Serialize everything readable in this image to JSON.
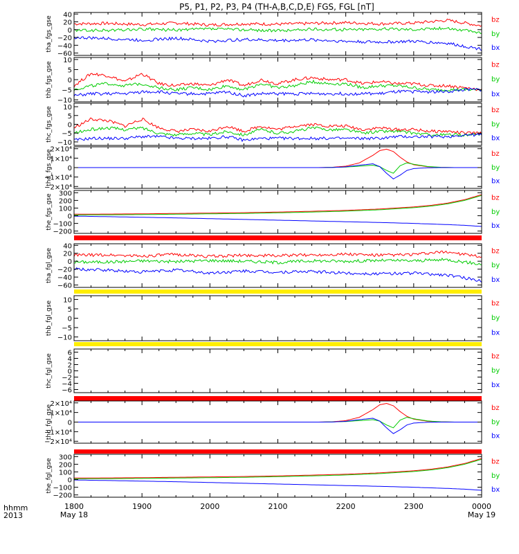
{
  "title": "P5, P1, P2, P3, P4 (TH-A,B,C,D,E) FGS, FGL [nT]",
  "time_axis": {
    "label": "hhmm",
    "year": "2013",
    "tick_labels": [
      "1800",
      "1900",
      "2000",
      "2100",
      "2200",
      "2300",
      "0000"
    ],
    "date_labels": [
      "May 18",
      "May 19"
    ]
  },
  "legend": {
    "labels": [
      "bz",
      "by",
      "bx"
    ],
    "colors": {
      "bz": "#ff0000",
      "by": "#00cc00",
      "bx": "#0000ff"
    }
  },
  "chart_data": [
    {
      "type": "line",
      "ylabel": "tha_fgs_gse",
      "ylim": [
        -66,
        44
      ],
      "yticks": [
        40,
        20,
        0,
        -20,
        -40,
        -60
      ],
      "ytick_labels": [
        "40",
        "20",
        "0",
        "−20",
        "−40",
        "−60"
      ],
      "x": [
        18.0,
        18.5,
        19.0,
        19.5,
        20.0,
        20.5,
        21.0,
        21.5,
        22.0,
        22.5,
        23.0,
        23.5,
        24.0
      ],
      "series": [
        {
          "name": "bz",
          "values": [
            15,
            16,
            13,
            17,
            12,
            15,
            14,
            16,
            18,
            15,
            17,
            24,
            10
          ]
        },
        {
          "name": "by",
          "values": [
            -2,
            -2,
            1,
            -1,
            2,
            0,
            -3,
            1,
            0,
            2,
            1,
            4,
            -8
          ]
        },
        {
          "name": "bx",
          "values": [
            -20,
            -23,
            -27,
            -22,
            -30,
            -25,
            -28,
            -26,
            -30,
            -32,
            -30,
            -35,
            -50
          ]
        }
      ]
    },
    {
      "type": "line",
      "ylabel": "thb_fgs_gse",
      "ylim": [
        -11,
        11
      ],
      "yticks": [
        10,
        5,
        0,
        -5,
        -10
      ],
      "ytick_labels": [
        "10",
        "5",
        "0",
        "−5",
        "−10"
      ],
      "x": [
        18.0,
        18.25,
        18.5,
        18.75,
        19.0,
        19.25,
        19.5,
        19.75,
        20.0,
        20.25,
        20.5,
        20.75,
        21.0,
        21.25,
        21.5,
        21.75,
        22.0,
        22.25,
        22.5,
        22.75,
        23.0,
        23.25,
        23.5,
        23.75,
        24.0
      ],
      "series": [
        {
          "name": "bz",
          "values": [
            -3,
            3,
            2,
            -1,
            3,
            -2,
            -3,
            -2,
            -3,
            0,
            -3,
            0,
            -2,
            0,
            1,
            0,
            0,
            -2,
            -1,
            -2,
            -2,
            -3,
            -3,
            -4,
            -5
          ]
        },
        {
          "name": "by",
          "values": [
            -5,
            -3,
            -2,
            -3,
            -2,
            -4,
            -5,
            -4,
            -5,
            -3,
            -5,
            -2,
            -4,
            -3,
            -1,
            -2,
            -2,
            -4,
            -3,
            -3,
            -4,
            -5,
            -5,
            -5,
            -5
          ]
        },
        {
          "name": "bx",
          "values": [
            -8,
            -7,
            -7,
            -7,
            -6,
            -6,
            -7,
            -7,
            -7,
            -6,
            -8,
            -7,
            -7,
            -7,
            -7,
            -7,
            -7,
            -7,
            -7,
            -6,
            -6,
            -6,
            -6,
            -5,
            -5
          ]
        }
      ]
    },
    {
      "type": "line",
      "ylabel": "thc_fgs_gse",
      "ylim": [
        -12,
        12
      ],
      "yticks": [
        10,
        5,
        0,
        -5,
        -10
      ],
      "ytick_labels": [
        "10",
        "5",
        "0",
        "−5",
        "−10"
      ],
      "x": [
        18.0,
        18.25,
        18.5,
        18.75,
        19.0,
        19.25,
        19.5,
        19.75,
        20.0,
        20.25,
        20.5,
        20.75,
        21.0,
        21.25,
        21.5,
        21.75,
        22.0,
        22.25,
        22.5,
        22.75,
        23.0,
        23.25,
        23.5,
        23.75,
        24.0
      ],
      "series": [
        {
          "name": "bz",
          "values": [
            -2,
            3,
            2,
            -1,
            3,
            -2,
            -4,
            -3,
            -4,
            -1,
            -4,
            -1,
            -3,
            -1,
            0,
            -1,
            -1,
            -3,
            -2,
            -3,
            -3,
            -4,
            -4,
            -5,
            -5
          ]
        },
        {
          "name": "by",
          "values": [
            -5,
            -3,
            -2,
            -3,
            -2,
            -5,
            -6,
            -5,
            -6,
            -4,
            -6,
            -3,
            -5,
            -4,
            -2,
            -3,
            -3,
            -5,
            -4,
            -4,
            -5,
            -6,
            -6,
            -6,
            -6
          ]
        },
        {
          "name": "bx",
          "values": [
            -9,
            -8,
            -8,
            -8,
            -7,
            -7,
            -8,
            -8,
            -8,
            -7,
            -9,
            -8,
            -8,
            -8,
            -8,
            -8,
            -8,
            -8,
            -8,
            -7,
            -7,
            -7,
            -7,
            -6,
            -6
          ]
        }
      ]
    },
    {
      "type": "line",
      "ylabel": "thd_fgs_gse",
      "ylim": [
        -22000,
        22000
      ],
      "yticks": [
        20000,
        10000,
        0,
        -10000,
        -20000
      ],
      "ytick_labels": [
        "2×10⁴",
        "1×10⁴",
        "0",
        "−1×10⁴",
        "−2×10⁴"
      ],
      "x": [
        18.0,
        21.4,
        21.6,
        21.8,
        22.0,
        22.2,
        22.4,
        22.5,
        22.6,
        22.7,
        22.8,
        22.9,
        23.0,
        23.2,
        23.4,
        23.6,
        24.0
      ],
      "series": [
        {
          "name": "bz",
          "values": [
            0,
            0,
            0,
            300,
            1500,
            5000,
            13000,
            18000,
            19500,
            17000,
            11000,
            6000,
            3000,
            900,
            200,
            0,
            0
          ]
        },
        {
          "name": "by",
          "values": [
            0,
            0,
            0,
            200,
            600,
            1500,
            2500,
            1000,
            -3000,
            -6000,
            2000,
            5000,
            3500,
            1200,
            300,
            0,
            0
          ]
        },
        {
          "name": "bx",
          "values": [
            0,
            0,
            0,
            100,
            800,
            2500,
            4000,
            1000,
            -6000,
            -12000,
            -8000,
            -3000,
            -1000,
            -200,
            0,
            0,
            0
          ]
        }
      ]
    },
    {
      "type": "line",
      "ylabel": "the_fgs_gse",
      "ylim": [
        -230,
        330
      ],
      "yticks": [
        300,
        200,
        100,
        0,
        -100,
        -200
      ],
      "ytick_labels": [
        "300",
        "200",
        "100",
        "0",
        "−100",
        "−200"
      ],
      "x": [
        18.0,
        18.5,
        19.0,
        19.5,
        20.0,
        20.5,
        21.0,
        21.5,
        22.0,
        22.5,
        23.0,
        23.25,
        23.5,
        23.75,
        24.0
      ],
      "series": [
        {
          "name": "bz",
          "values": [
            20,
            22,
            25,
            30,
            35,
            40,
            48,
            58,
            70,
            88,
            115,
            135,
            165,
            210,
            275
          ]
        },
        {
          "name": "by",
          "values": [
            10,
            12,
            15,
            20,
            25,
            30,
            38,
            48,
            60,
            78,
            105,
            125,
            155,
            200,
            265
          ]
        },
        {
          "name": "bx",
          "values": [
            -5,
            -12,
            -20,
            -28,
            -38,
            -48,
            -58,
            -68,
            -78,
            -88,
            -100,
            -108,
            -115,
            -125,
            -140
          ]
        }
      ]
    },
    {
      "type": "line",
      "ylabel": "tha_fgl_gse",
      "ylim": [
        -66,
        44
      ],
      "yticks": [
        40,
        20,
        0,
        -20,
        -40,
        -60
      ],
      "ytick_labels": [
        "40",
        "20",
        "0",
        "−20",
        "−40",
        "−60"
      ],
      "x": [
        18.0,
        18.5,
        19.0,
        19.5,
        20.0,
        20.5,
        21.0,
        21.5,
        22.0,
        22.5,
        23.0,
        23.5,
        24.0
      ],
      "series": [
        {
          "name": "bz",
          "values": [
            15,
            16,
            13,
            17,
            12,
            15,
            14,
            16,
            18,
            15,
            17,
            24,
            10
          ]
        },
        {
          "name": "by",
          "values": [
            -2,
            -2,
            1,
            -1,
            2,
            0,
            -3,
            1,
            0,
            2,
            1,
            4,
            -8
          ]
        },
        {
          "name": "bx",
          "values": [
            -20,
            -23,
            -27,
            -22,
            -30,
            -25,
            -28,
            -26,
            -30,
            -32,
            -30,
            -35,
            -50
          ]
        }
      ]
    },
    {
      "type": "line",
      "ylabel": "thb_fgl_gse",
      "ylim": [
        -12,
        12
      ],
      "yticks": [
        10,
        5,
        0,
        -5,
        -10
      ],
      "ytick_labels": [
        "10",
        "5",
        "0",
        "−5",
        "−10"
      ],
      "x": [],
      "series": []
    },
    {
      "type": "line",
      "ylabel": "thc_fgl_gse",
      "ylim": [
        -7,
        7
      ],
      "yticks": [
        6,
        4,
        2,
        0,
        -2,
        -4,
        -6
      ],
      "ytick_labels": [
        "6",
        "4",
        "2",
        "0",
        "−2",
        "−4",
        "−6"
      ],
      "x": [],
      "series": []
    },
    {
      "type": "line",
      "ylabel": "thd_fgl_gse",
      "ylim": [
        -22000,
        22000
      ],
      "yticks": [
        20000,
        10000,
        0,
        -10000,
        -20000
      ],
      "ytick_labels": [
        "2×10⁴",
        "1×10⁴",
        "0",
        "−1×10⁴",
        "−2×10⁴"
      ],
      "x": [
        18.0,
        21.4,
        21.6,
        21.8,
        22.0,
        22.2,
        22.4,
        22.5,
        22.6,
        22.7,
        22.8,
        22.9,
        23.0,
        23.2,
        23.4,
        23.6,
        24.0
      ],
      "series": [
        {
          "name": "bz",
          "values": [
            0,
            0,
            0,
            300,
            1500,
            5000,
            13000,
            18000,
            19500,
            17000,
            11000,
            6000,
            3000,
            900,
            200,
            0,
            0
          ]
        },
        {
          "name": "by",
          "values": [
            0,
            0,
            0,
            200,
            600,
            1500,
            2500,
            1000,
            -3000,
            -6000,
            2000,
            5000,
            3500,
            1200,
            300,
            0,
            0
          ]
        },
        {
          "name": "bx",
          "values": [
            0,
            0,
            0,
            100,
            800,
            2500,
            4000,
            1000,
            -6000,
            -12000,
            -8000,
            -3000,
            -1000,
            -200,
            0,
            0,
            0
          ]
        }
      ]
    },
    {
      "type": "line",
      "ylabel": "the_fgl_gse",
      "ylim": [
        -230,
        330
      ],
      "yticks": [
        300,
        200,
        100,
        0,
        -100,
        -200
      ],
      "ytick_labels": [
        "300",
        "200",
        "100",
        "0",
        "−100",
        "−200"
      ],
      "x": [
        18.0,
        18.5,
        19.0,
        19.5,
        20.0,
        20.5,
        21.0,
        21.5,
        22.0,
        22.5,
        23.0,
        23.25,
        23.5,
        23.75,
        24.0
      ],
      "series": [
        {
          "name": "bz",
          "values": [
            20,
            22,
            25,
            30,
            35,
            40,
            48,
            58,
            70,
            88,
            115,
            135,
            165,
            210,
            275
          ]
        },
        {
          "name": "by",
          "values": [
            10,
            12,
            15,
            20,
            25,
            30,
            38,
            48,
            60,
            78,
            105,
            125,
            155,
            200,
            265
          ]
        },
        {
          "name": "bx",
          "values": [
            -5,
            -12,
            -20,
            -28,
            -38,
            -48,
            -58,
            -68,
            -78,
            -88,
            -100,
            -108,
            -115,
            -125,
            -140
          ]
        }
      ]
    }
  ]
}
